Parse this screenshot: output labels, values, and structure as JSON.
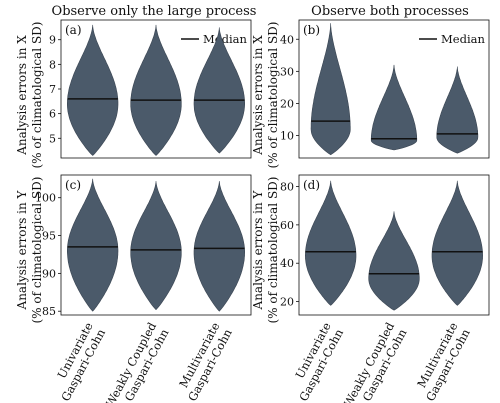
{
  "figure": {
    "col_titles": [
      "Observe only the large process",
      "Observe both processes"
    ],
    "row_ylabels": [
      [
        "Analysis errors in X",
        "(% of climatological SD)"
      ],
      [
        "Analysis errors in Y",
        "(% of climatological SD)"
      ]
    ],
    "legend_label": "Median",
    "category_labels": [
      [
        "Univariate",
        "Gaspari-Cohn"
      ],
      [
        "Weakly Coupled",
        "Gaspari-Cohn"
      ],
      [
        "Multivariate",
        "Gaspari-Cohn"
      ]
    ]
  },
  "colors": {
    "violin": "#4b5a6a",
    "median": "#111111",
    "axis": "#111111"
  },
  "chart_data": [
    {
      "type": "violin",
      "panel": "(a)",
      "legend": "top-right",
      "categories": [
        "Univariate Gaspari-Cohn",
        "Weakly Coupled Gaspari-Cohn",
        "Multivariate Gaspari-Cohn"
      ],
      "ylim": [
        4.2,
        9.8
      ],
      "yticks": [
        5,
        6,
        7,
        8,
        9
      ],
      "series": [
        {
          "min": 4.3,
          "max": 9.6,
          "median": 6.6,
          "mode": 6.4,
          "max_halfwidth": 0.8
        },
        {
          "min": 4.3,
          "max": 9.6,
          "median": 6.55,
          "mode": 6.4,
          "max_halfwidth": 0.8
        },
        {
          "min": 4.4,
          "max": 9.5,
          "median": 6.55,
          "mode": 6.4,
          "max_halfwidth": 0.8
        }
      ]
    },
    {
      "type": "violin",
      "panel": "(b)",
      "legend": "top-right",
      "categories": [
        "Univariate Gaspari-Cohn",
        "Weakly Coupled Gaspari-Cohn",
        "Multivariate Gaspari-Cohn"
      ],
      "ylim": [
        3,
        46
      ],
      "yticks": [
        10,
        20,
        30,
        40
      ],
      "series": [
        {
          "min": 4,
          "max": 45,
          "median": 14.5,
          "mode": 12,
          "max_halfwidth": 0.62
        },
        {
          "min": 5.5,
          "max": 32,
          "median": 9,
          "mode": 8.5,
          "max_halfwidth": 0.72
        },
        {
          "min": 4.5,
          "max": 31.5,
          "median": 10.5,
          "mode": 9.5,
          "max_halfwidth": 0.65
        }
      ]
    },
    {
      "type": "violin",
      "panel": "(c)",
      "categories": [
        "Univariate Gaspari-Cohn",
        "Weakly Coupled Gaspari-Cohn",
        "Multivariate Gaspari-Cohn"
      ],
      "ylim": [
        84.5,
        103
      ],
      "yticks": [
        85,
        90,
        95,
        100
      ],
      "series": [
        {
          "min": 85,
          "max": 102.5,
          "median": 93.5,
          "mode": 93,
          "max_halfwidth": 0.8
        },
        {
          "min": 85.2,
          "max": 102.2,
          "median": 93.1,
          "mode": 92.8,
          "max_halfwidth": 0.8
        },
        {
          "min": 85,
          "max": 102.2,
          "median": 93.3,
          "mode": 92.8,
          "max_halfwidth": 0.8
        }
      ]
    },
    {
      "type": "violin",
      "panel": "(d)",
      "categories": [
        "Univariate Gaspari-Cohn",
        "Weakly Coupled Gaspari-Cohn",
        "Multivariate Gaspari-Cohn"
      ],
      "ylim": [
        13,
        86
      ],
      "yticks": [
        20,
        40,
        60,
        80
      ],
      "series": [
        {
          "min": 18,
          "max": 83,
          "median": 46,
          "mode": 44,
          "max_halfwidth": 0.8
        },
        {
          "min": 15.5,
          "max": 67,
          "median": 34.5,
          "mode": 32,
          "max_halfwidth": 0.8
        },
        {
          "min": 18,
          "max": 83,
          "median": 46,
          "mode": 44,
          "max_halfwidth": 0.8
        }
      ]
    }
  ]
}
